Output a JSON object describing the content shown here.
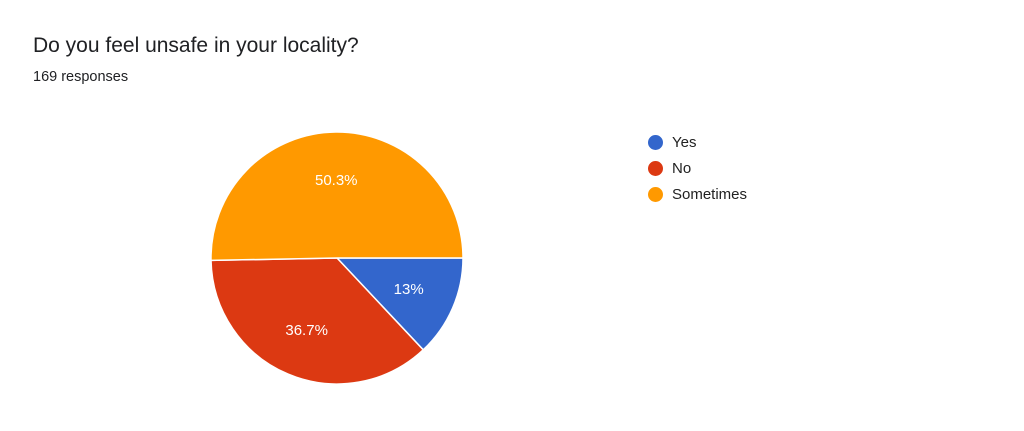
{
  "chart_data": {
    "type": "pie",
    "title": "Do you feel unsafe in your locality?",
    "subtitle": "169 responses",
    "categories": [
      "Yes",
      "No",
      "Sometimes"
    ],
    "values": [
      13,
      36.7,
      50.3
    ],
    "labels": [
      "13%",
      "36.7%",
      "50.3%"
    ],
    "colors": [
      "#3366cc",
      "#dc3912",
      "#ff9900"
    ],
    "legend_position": "right"
  }
}
